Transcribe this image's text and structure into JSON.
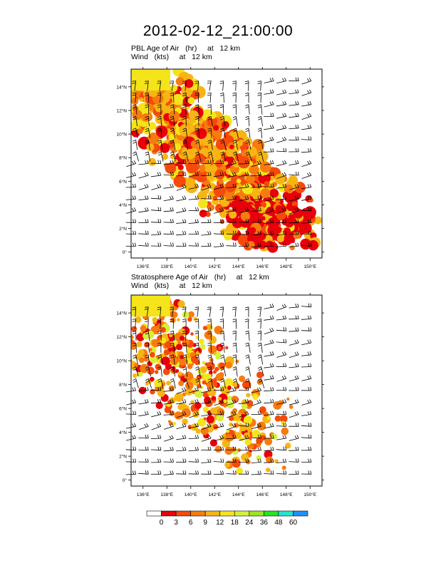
{
  "title": "2012-02-12_21:00:00",
  "chart_data": [
    {
      "type": "heatmap",
      "field_label": "PBL Age of Air   (hr)     at   12 km",
      "wind_label": "Wind   (kts)     at   12 km",
      "xticks": [
        "136°E",
        "138°E",
        "140°E",
        "142°E",
        "144°E",
        "146°E",
        "148°E",
        "150°E"
      ],
      "yticks": [
        "0°",
        "2°N",
        "4°N",
        "6°N",
        "8°N",
        "10°N",
        "12°N",
        "14°N"
      ],
      "xlim": [
        135,
        151
      ],
      "ylim": [
        -0.5,
        15.5
      ],
      "colorbar_levels": [
        "0",
        "3",
        "6",
        "9",
        "12",
        "18",
        "24",
        "36",
        "48",
        "60"
      ]
    },
    {
      "type": "heatmap",
      "field_label": "Stratosphere Age of Air   (hr)     at   12 km",
      "wind_label": "Wind   (kts)     at   12 km",
      "xticks": [
        "136°E",
        "138°E",
        "140°E",
        "142°E",
        "144°E",
        "146°E",
        "148°E",
        "150°E"
      ],
      "yticks": [
        "0°",
        "2°N",
        "4°N",
        "6°N",
        "8°N",
        "10°N",
        "12°N",
        "14°N"
      ],
      "xlim": [
        135,
        151
      ],
      "ylim": [
        -0.5,
        15.5
      ],
      "colorbar_levels": [
        "0",
        "3",
        "6",
        "9",
        "12",
        "18",
        "24",
        "36",
        "48",
        "60"
      ]
    }
  ],
  "colorbar": {
    "labels": [
      "0",
      "3",
      "6",
      "9",
      "12",
      "18",
      "24",
      "36",
      "48",
      "60"
    ],
    "colors": [
      "#ffffff",
      "#e8000b",
      "#f54a0c",
      "#f77b0e",
      "#f7b514",
      "#f5e41a",
      "#d6f03a",
      "#9be61f",
      "#23e620",
      "#22e5cf",
      "#1e90ff",
      "#0a1a8a"
    ]
  }
}
